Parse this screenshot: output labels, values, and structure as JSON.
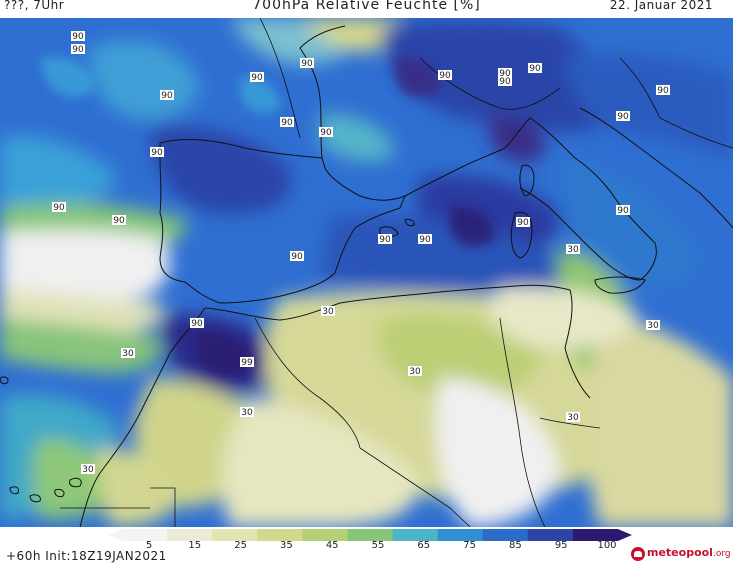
{
  "header": {
    "left": "???, 7Uhr",
    "title": "700hPa Relative Feuchte [%]",
    "right": "22. Januar 2021"
  },
  "footer": {
    "run": "+60h  Init:18Z19JAN2021"
  },
  "legend": {
    "ticks": [
      "5",
      "15",
      "25",
      "35",
      "45",
      "55",
      "65",
      "75",
      "85",
      "95",
      "100"
    ],
    "colors": [
      "#f4f4f4",
      "#ececd6",
      "#e4e4b2",
      "#d2d88c",
      "#b6d074",
      "#86c678",
      "#4ab4c8",
      "#2f8fd2",
      "#2a6cc6",
      "#2c44a8",
      "#2c1a70"
    ]
  },
  "brand": {
    "name": "meteopool",
    "suffix": ".org"
  },
  "contour_labels": [
    "90",
    "90",
    "90",
    "90",
    "90",
    "90",
    "90",
    "90",
    "90",
    "90",
    "90",
    "90",
    "90",
    "90",
    "90",
    "90",
    "90",
    "90",
    "90",
    "90",
    "90",
    "90",
    "30",
    "30",
    "30",
    "30",
    "30",
    "30",
    "30",
    "30",
    "90",
    "99"
  ]
}
